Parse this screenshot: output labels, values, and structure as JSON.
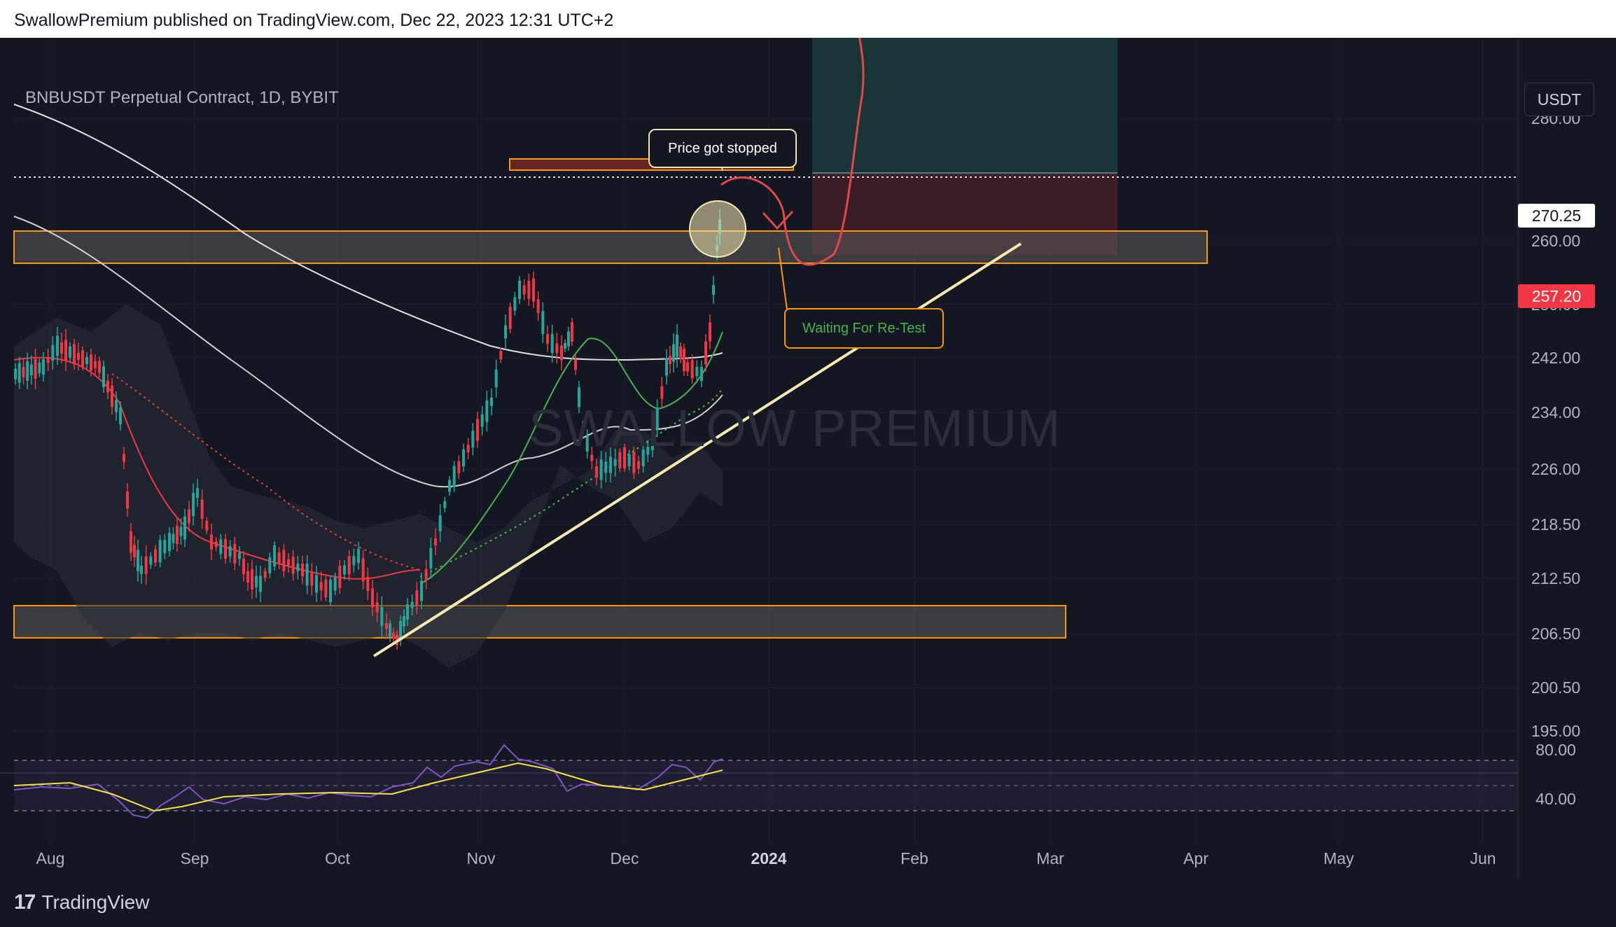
{
  "header": {
    "publisher_line": "SwallowPremium published on TradingView.com, Dec 22, 2023 12:31 UTC+2"
  },
  "chart": {
    "title": "BNBUSDT Perpetual Contract, 1D, BYBIT",
    "currency_button": "USDT",
    "current_price_tag": "270.25",
    "stop_price_tag": "257.20",
    "watermark": "SWALLOW PREMIUM",
    "callouts": {
      "stopped": "Price got stopped",
      "retest": "Waiting For Re-Test"
    },
    "colors": {
      "background": "#131722",
      "bull": "#26a69a",
      "bear": "#f23645",
      "zone_border": "#ff9800",
      "trend_line": "#f6eab0",
      "rsi_line": "#7e57c2"
    }
  },
  "chart_data": {
    "type": "candlestick",
    "price_axis": [
      "280.00",
      "260.00",
      "250.00",
      "242.00",
      "234.00",
      "226.00",
      "218.50",
      "212.50",
      "206.50",
      "200.50",
      "195.00"
    ],
    "rsi_axis": [
      "80.00",
      "40.00"
    ],
    "time_axis": [
      "Aug",
      "Sep",
      "Oct",
      "Nov",
      "Dec",
      "2024",
      "Feb",
      "Mar",
      "Apr",
      "May",
      "Jun"
    ],
    "ylim": [
      192,
      290
    ],
    "zones": [
      {
        "label": "resistance zone",
        "from": 256.5,
        "to": 261.5
      },
      {
        "label": "support zone",
        "from": 203.0,
        "to": 208.5
      }
    ],
    "current_price": 270.25,
    "stop_price": 257.2
  },
  "footer": {
    "brand": "TradingView",
    "logo_icon": "tradingview-logo-icon"
  }
}
